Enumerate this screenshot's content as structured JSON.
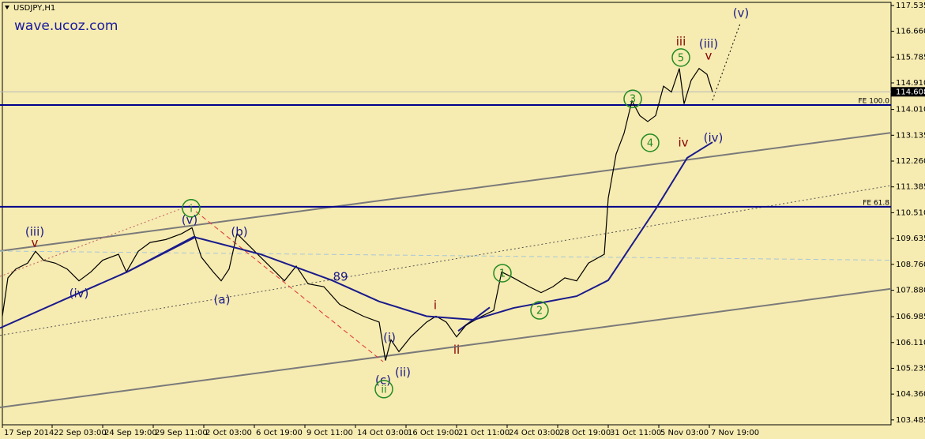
{
  "chart_data": {
    "type": "line",
    "title": "USDJPY,H1",
    "watermark": "wave.ucoz.com",
    "xlim": [
      0,
      1128
    ],
    "ylim": [
      103.32,
      117.72
    ],
    "xticks": [
      {
        "value": 3,
        "label": "17 Sep 2014"
      },
      {
        "value": 66,
        "label": "22 Sep 03:00"
      },
      {
        "value": 130,
        "label": "24 Sep 19:00"
      },
      {
        "value": 194,
        "label": "29 Sep 11:00"
      },
      {
        "value": 258,
        "label": "2 Oct 03:00"
      },
      {
        "value": 322,
        "label": "6 Oct 19:00"
      },
      {
        "value": 386,
        "label": "9 Oct 11:00"
      },
      {
        "value": 450,
        "label": "14 Oct 03:00"
      },
      {
        "value": 514,
        "label": "16 Oct 19:00"
      },
      {
        "value": 578,
        "label": "21 Oct 11:00"
      },
      {
        "value": 642,
        "label": "24 Oct 03:00"
      },
      {
        "value": 706,
        "label": "28 Oct 19:00"
      },
      {
        "value": 770,
        "label": "31 Oct 11:00"
      },
      {
        "value": 834,
        "label": "5 Nov 03:00"
      },
      {
        "value": 898,
        "label": "7 Nov 19:00"
      }
    ],
    "yticks": [
      117.535,
      {
        "value": 116.66,
        "label": "116.660"
      },
      115.785,
      {
        "value": 114.91,
        "label": "114.910"
      },
      {
        "value": 114.01,
        "label": "114.010"
      },
      113.135,
      {
        "value": 112.26,
        "label": "112.260"
      },
      111.385,
      {
        "value": 110.51,
        "label": "110.510"
      },
      109.635,
      {
        "value": 108.76,
        "label": "108.760"
      },
      {
        "value": 107.88,
        "label": "107.880"
      },
      106.985,
      {
        "value": 106.11,
        "label": "106.110"
      },
      105.235,
      {
        "value": 104.36,
        "label": "104.360"
      },
      103.485
    ],
    "current_price": 114.608,
    "series": [
      {
        "color": "#000000",
        "x": [
          3,
          10,
          20,
          35,
          45,
          55,
          70,
          85,
          100,
          115,
          130,
          150,
          160,
          175,
          190,
          210,
          230,
          243,
          255,
          270,
          280,
          290,
          300,
          315,
          330,
          345,
          360,
          375,
          390,
          410,
          430,
          445,
          460,
          480,
          488,
          495,
          505,
          520,
          540,
          552,
          565,
          578,
          590,
          610,
          625,
          635,
          650,
          670,
          685,
          700,
          715,
          730,
          745,
          765,
          770,
          780,
          790,
          800,
          810,
          820,
          830,
          840,
          850,
          860,
          866,
          875,
          885,
          895,
          902
        ],
        "values": [
          107.0,
          108.3,
          108.6,
          108.8,
          109.2,
          108.9,
          108.8,
          108.6,
          108.2,
          108.5,
          108.9,
          109.1,
          108.5,
          109.2,
          109.5,
          109.6,
          109.8,
          110.0,
          109.0,
          108.5,
          108.2,
          108.6,
          109.8,
          109.4,
          109.0,
          108.6,
          108.2,
          108.7,
          108.1,
          108.0,
          107.4,
          107.2,
          107.0,
          106.8,
          105.5,
          106.2,
          105.8,
          106.3,
          106.8,
          107.0,
          106.8,
          106.3,
          106.7,
          107.0,
          107.2,
          108.5,
          108.3,
          108.0,
          107.8,
          108.0,
          108.3,
          108.2,
          108.8,
          109.1,
          111.0,
          112.5,
          113.2,
          114.3,
          113.8,
          113.6,
          113.8,
          114.8,
          114.6,
          115.4,
          114.2,
          115.0,
          115.4,
          115.2,
          114.6
        ]
      },
      {
        "color": "#1a1a8c",
        "x": [
          0,
          80,
          160,
          245,
          330,
          420,
          480,
          540,
          600,
          650,
          730,
          770,
          830,
          870,
          902
        ],
        "values": [
          106.6,
          107.55,
          108.49,
          109.69,
          109.1,
          108.22,
          107.5,
          107.0,
          106.88,
          107.28,
          107.68,
          108.22,
          110.63,
          112.37,
          112.9
        ]
      }
    ],
    "levels": [
      {
        "label": "FE 100.0",
        "value": 114.16,
        "color": "#00008b"
      },
      {
        "label": "FE 61.8",
        "value": 110.71,
        "color": "#00008b"
      }
    ],
    "trendlines": [
      {
        "x": [
          0,
          1128
        ],
        "values": [
          109.21,
          113.22
        ],
        "color": "#7a7a7a",
        "style": "solid"
      },
      {
        "x": [
          0,
          1128
        ],
        "values": [
          103.91,
          107.93
        ],
        "color": "#7a7a7a",
        "style": "solid"
      },
      {
        "x": [
          0,
          1128
        ],
        "values": [
          106.35,
          111.43
        ],
        "color": "#555555",
        "style": "dotted"
      },
      {
        "x": [
          0,
          1128
        ],
        "values": [
          109.21,
          108.9
        ],
        "color": "#a8c8d8",
        "style": "dashed"
      },
      {
        "x": [
          160,
          248
        ],
        "values": [
          108.49,
          109.69
        ],
        "color": "#1a1a8c",
        "style": "solid"
      },
      {
        "x": [
          0,
          240
        ],
        "values": [
          108.35,
          110.75
        ],
        "color": "#c06060",
        "style": "dotted"
      },
      {
        "x": [
          248,
          485
        ],
        "values": [
          110.55,
          105.46
        ],
        "color": "#e03030",
        "style": "dashed"
      },
      {
        "x": [
          580,
          620
        ],
        "values": [
          106.5,
          107.3
        ],
        "color": "#1a1a8c",
        "style": "solid"
      },
      {
        "x": [
          902,
          937
        ],
        "values": [
          114.32,
          116.92
        ],
        "color": "#000000",
        "style": "dotted"
      }
    ],
    "annotations": [
      {
        "text": "(iii)",
        "x": 44,
        "y": 109.88,
        "color": "#1a1a8c",
        "circled": false
      },
      {
        "text": "v",
        "x": 44,
        "y": 109.5,
        "color": "#8b0000",
        "circled": false
      },
      {
        "text": "(iv)",
        "x": 100,
        "y": 107.79,
        "color": "#1a1a8c",
        "circled": false
      },
      {
        "text": "i",
        "x": 242,
        "y": 110.66,
        "color": "#228b22",
        "circled": true
      },
      {
        "text": "(v)",
        "x": 240,
        "y": 110.28,
        "color": "#1a1a8c",
        "circled": false
      },
      {
        "text": "(b)",
        "x": 303,
        "y": 109.88,
        "color": "#1a1a8c",
        "circled": false
      },
      {
        "text": "(a)",
        "x": 281,
        "y": 107.58,
        "color": "#1a1a8c",
        "circled": false
      },
      {
        "text": "89",
        "x": 431,
        "y": 108.35,
        "color": "#1a1a8c",
        "circled": false
      },
      {
        "text": "(i)",
        "x": 493,
        "y": 106.29,
        "color": "#1a1a8c",
        "circled": false
      },
      {
        "text": "(c)",
        "x": 485,
        "y": 104.85,
        "color": "#1a1a8c",
        "circled": false
      },
      {
        "text": "ii",
        "x": 486,
        "y": 104.53,
        "color": "#228b22",
        "circled": true
      },
      {
        "text": "(ii)",
        "x": 510,
        "y": 105.12,
        "color": "#1a1a8c",
        "circled": false
      },
      {
        "text": "i",
        "x": 551,
        "y": 107.39,
        "color": "#8b0000",
        "circled": false
      },
      {
        "text": "ii",
        "x": 578,
        "y": 105.87,
        "color": "#8b0000",
        "circled": false
      },
      {
        "text": "1",
        "x": 636,
        "y": 108.46,
        "color": "#228b22",
        "circled": true
      },
      {
        "text": "2",
        "x": 683,
        "y": 107.2,
        "color": "#228b22",
        "circled": true
      },
      {
        "text": "3",
        "x": 801,
        "y": 114.37,
        "color": "#228b22",
        "circled": true
      },
      {
        "text": "4",
        "x": 823,
        "y": 112.88,
        "color": "#228b22",
        "circled": true
      },
      {
        "text": "5",
        "x": 862,
        "y": 115.77,
        "color": "#228b22",
        "circled": true
      },
      {
        "text": "iii",
        "x": 862,
        "y": 116.33,
        "color": "#8b0000",
        "circled": false
      },
      {
        "text": "(iii)",
        "x": 897,
        "y": 116.25,
        "color": "#1a1a8c",
        "circled": false
      },
      {
        "text": "v",
        "x": 897,
        "y": 115.85,
        "color": "#8b0000",
        "circled": false
      },
      {
        "text": "iv",
        "x": 865,
        "y": 112.9,
        "color": "#8b0000",
        "circled": false
      },
      {
        "text": "(iv)",
        "x": 903,
        "y": 113.06,
        "color": "#1a1a8c",
        "circled": false
      },
      {
        "text": "(v)",
        "x": 938,
        "y": 117.29,
        "color": "#1a1a8c",
        "circled": false
      }
    ]
  }
}
